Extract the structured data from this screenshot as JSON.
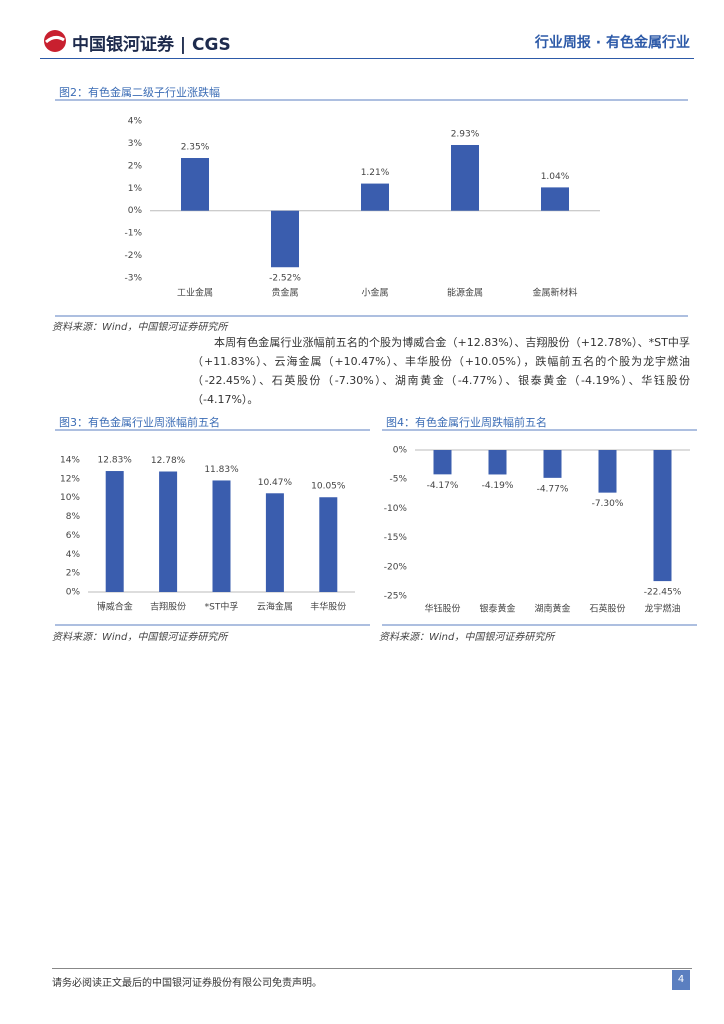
{
  "header": {
    "logo": "中国银河证券",
    "logo_en": "CGS",
    "report": "行业周报 · 有色金属行业"
  },
  "chart_data": [
    {
      "type": "bar",
      "title": "图2：有色金属二级子行业涨跌幅",
      "color": "#3a5dae",
      "categories": [
        "工业金属",
        "贵金属",
        "小金属",
        "能源金属",
        "金属新材料"
      ],
      "values": [
        2.35,
        -2.52,
        1.21,
        2.93,
        1.04
      ],
      "value_labels": [
        "2.35%",
        "-2.52%",
        "1.21%",
        "2.93%",
        "1.04%"
      ],
      "ylim": [
        -3,
        4
      ],
      "yticks": [
        {
          "value": -3,
          "label": "-3%"
        },
        {
          "value": -2,
          "label": "-2%"
        },
        {
          "value": -1,
          "label": "-1%"
        },
        {
          "value": 0,
          "label": "0%"
        },
        {
          "value": 1,
          "label": "1%"
        },
        {
          "value": 2,
          "label": "2%"
        },
        {
          "value": 3,
          "label": "3%"
        },
        {
          "value": 4,
          "label": "4%"
        }
      ],
      "source": "资料来源：Wind，中国银河证券研究所"
    },
    {
      "type": "bar",
      "title": "图3：有色金属行业周涨幅前五名",
      "color": "#3a5dae",
      "categories": [
        "博威合金",
        "吉翔股份",
        "*ST中孚",
        "云海金属",
        "丰华股份"
      ],
      "values": [
        12.83,
        12.78,
        11.83,
        10.47,
        10.05
      ],
      "value_labels": [
        "12.83%",
        "12.78%",
        "11.83%",
        "10.47%",
        "10.05%"
      ],
      "ylim": [
        0,
        14
      ],
      "yticks": [
        {
          "value": 0,
          "label": "0%"
        },
        {
          "value": 2,
          "label": "2%"
        },
        {
          "value": 4,
          "label": "4%"
        },
        {
          "value": 6,
          "label": "6%"
        },
        {
          "value": 8,
          "label": "8%"
        },
        {
          "value": 10,
          "label": "10%"
        },
        {
          "value": 12,
          "label": "12%"
        },
        {
          "value": 14,
          "label": "14%"
        }
      ],
      "source": "资料来源：Wind，中国银河证券研究所"
    },
    {
      "type": "bar",
      "title": "图4：有色金属行业周跌幅前五名",
      "color": "#3a5dae",
      "categories": [
        "华钰股份",
        "银泰黄金",
        "湖南黄金",
        "石英股份",
        "龙宇燃油"
      ],
      "values": [
        -4.17,
        -4.19,
        -4.77,
        -7.3,
        -22.45
      ],
      "value_labels": [
        "-4.17%",
        "-4.19%",
        "-4.77%",
        "-7.30%",
        "-22.45%"
      ],
      "ylim": [
        -25,
        0
      ],
      "yticks": [
        {
          "value": -25,
          "label": "-25%"
        },
        {
          "value": -20,
          "label": "-20%"
        },
        {
          "value": -15,
          "label": "-15%"
        },
        {
          "value": -10,
          "label": "-10%"
        },
        {
          "value": -5,
          "label": "-5%"
        },
        {
          "value": 0,
          "label": "0%"
        }
      ],
      "source": "资料来源：Wind，中国银河证券研究所"
    }
  ],
  "paragraph": "本周有色金属行业涨幅前五名的个股为博威合金（+12.83%）、吉翔股份（+12.78%）、*ST中孚（+11.83%）、云海金属（+10.47%）、丰华股份（+10.05%），跌幅前五名的个股为龙宇燃油（-22.45%）、石英股份（-7.30%）、湖南黄金（-4.77%）、银泰黄金（-4.19%）、华钰股份（-4.17%）。",
  "footer": {
    "disclaimer": "请务必阅读正文最后的中国银河证券股份有限公司免责声明。",
    "page": "4"
  }
}
